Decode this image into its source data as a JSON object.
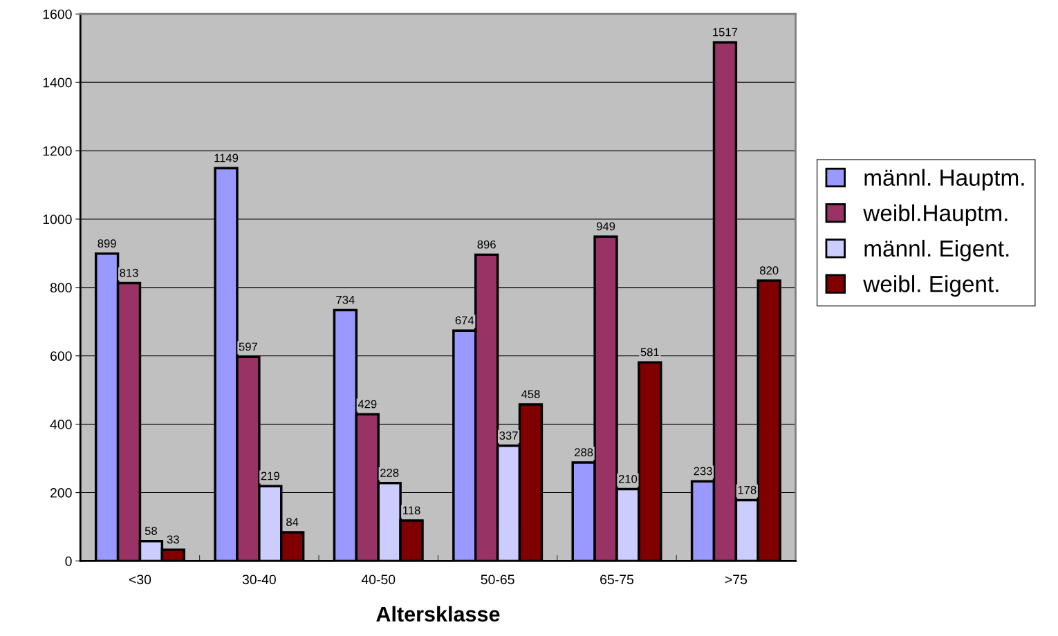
{
  "chart_data": {
    "type": "bar",
    "xlabel": "Altersklasse",
    "categories": [
      "<30",
      "30-40",
      "40-50",
      "50-65",
      "65-75",
      ">75"
    ],
    "series": [
      {
        "name": "männl. Hauptm.",
        "color": "#9999ff",
        "values": [
          899,
          1149,
          734,
          674,
          288,
          233
        ]
      },
      {
        "name": "weibl.Hauptm.",
        "color": "#993366",
        "values": [
          813,
          597,
          429,
          896,
          949,
          1517
        ]
      },
      {
        "name": "männl. Eigent.",
        "color": "#ccccff",
        "values": [
          58,
          219,
          228,
          337,
          210,
          178
        ]
      },
      {
        "name": "weibl. Eigent.",
        "color": "#800000",
        "values": [
          33,
          84,
          118,
          458,
          581,
          820
        ]
      }
    ],
    "ylim": [
      0,
      1600
    ],
    "yticks": [
      0,
      200,
      400,
      600,
      800,
      1000,
      1200,
      1400,
      1600
    ],
    "grid": "y",
    "legend": "right",
    "data_labels": true
  }
}
